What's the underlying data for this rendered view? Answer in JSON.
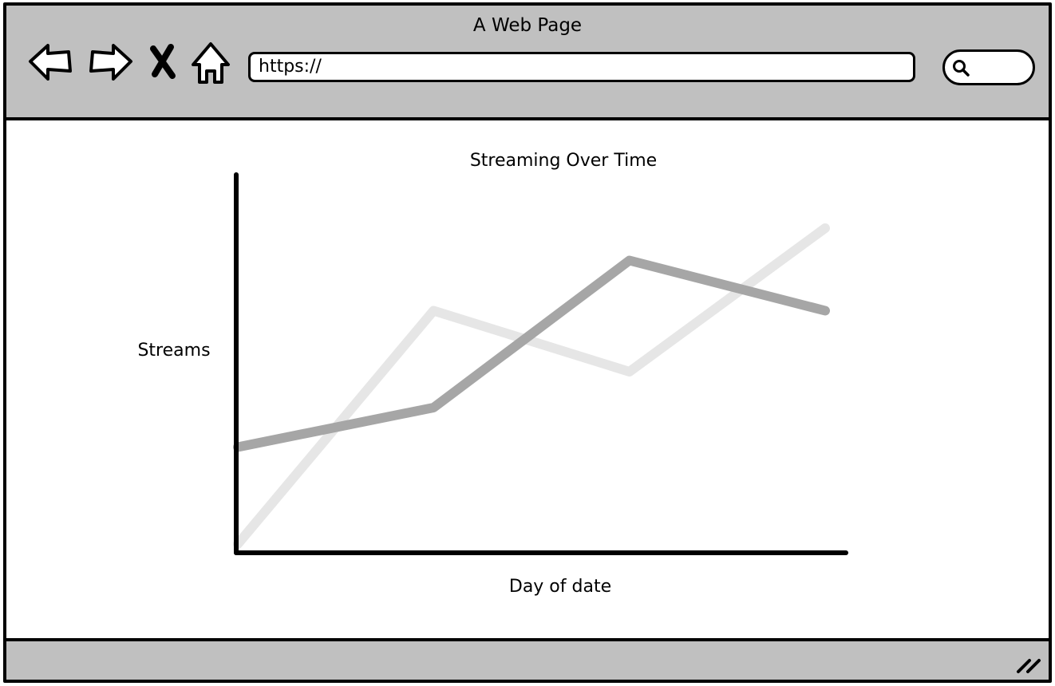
{
  "window": {
    "title": "A Web Page"
  },
  "toolbar": {
    "back_icon": "back-arrow-icon",
    "forward_icon": "forward-arrow-icon",
    "stop_icon": "close-icon",
    "home_icon": "home-icon"
  },
  "address_bar": {
    "value": "https://"
  },
  "search": {
    "icon": "search-icon",
    "value": ""
  },
  "chart_data": {
    "type": "line",
    "title": "Streaming Over Time",
    "xlabel": "Day of date",
    "ylabel": "Streams",
    "x": [
      1,
      2,
      3,
      4
    ],
    "ylim": [
      0,
      100
    ],
    "grid": false,
    "series": [
      {
        "values": [
          29,
          40,
          81,
          67
        ],
        "color": "#a6a6a6"
      },
      {
        "values": [
          2,
          67,
          50,
          90
        ],
        "color": "#e6e6e6"
      }
    ]
  }
}
